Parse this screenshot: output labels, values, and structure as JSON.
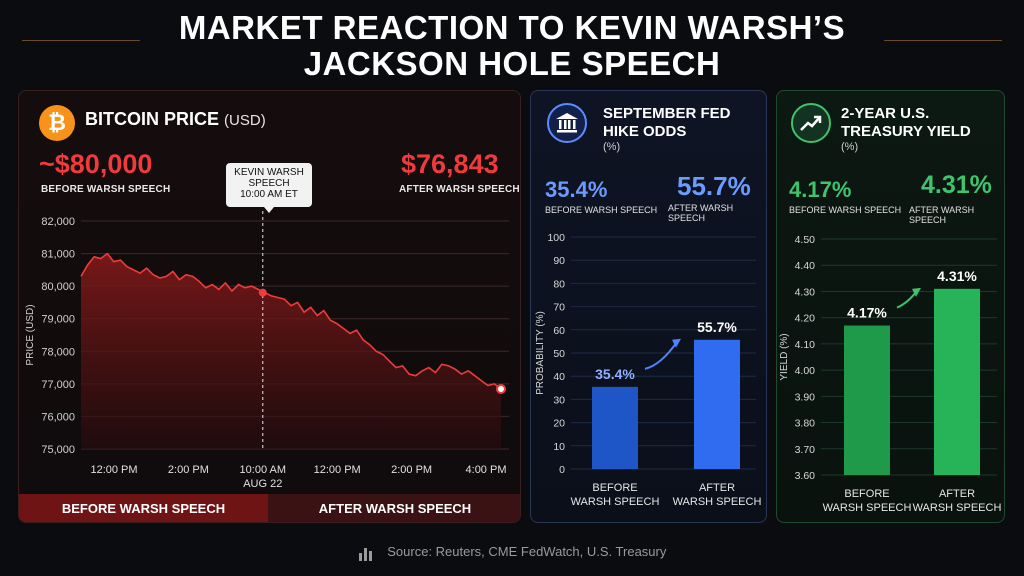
{
  "title_line1": "MARKET REACTION TO KEVIN WARSH’S",
  "title_line2": "JACKSON HOLE SPEECH",
  "source": "Source: Reuters, CME FedWatch, U.S. Treasury",
  "colors": {
    "red": "#ef3b3b",
    "blue": "#6b9bff",
    "green": "#3ec46d",
    "bitcoin": "#f7931a"
  },
  "bitcoin": {
    "icon": "bitcoin-icon",
    "title": "BITCOIN PRICE",
    "unit": "(USD)",
    "before_value": "~$80,000",
    "before_label": "BEFORE WARSH SPEECH",
    "after_value": "$76,843",
    "after_label": "AFTER WARSH SPEECH",
    "event_line1": "KEVIN WARSH",
    "event_line2": "SPEECH",
    "event_line3": "10:00 AM ET",
    "band_before": "BEFORE WARSH SPEECH",
    "band_after": "AFTER WARSH SPEECH"
  },
  "fed": {
    "icon": "bank-icon",
    "title_line1": "SEPTEMBER FED",
    "title_line2": "HIKE ODDS",
    "unit": "(%)",
    "before_value": "35.4%",
    "before_label": "BEFORE WARSH SPEECH",
    "after_value": "55.7%",
    "after_label": "AFTER WARSH SPEECH"
  },
  "yield": {
    "icon": "trend-up-icon",
    "title_line1": "2-YEAR U.S.",
    "title_line2": "TREASURY YIELD",
    "unit": "(%)",
    "before_value": "4.17%",
    "before_label": "BEFORE WARSH SPEECH",
    "after_value": "4.31%",
    "after_label": "AFTER WARSH SPEECH"
  },
  "chart_data": [
    {
      "type": "line",
      "ylabel": "PRICE (USD)",
      "ylim": [
        75000,
        82000
      ],
      "y_ticks": [
        "82,000",
        "81,000",
        "80,000",
        "79,000",
        "78,000",
        "77,000",
        "76,000",
        "75,000"
      ],
      "x_tick_labels": [
        {
          "label": "12:00 PM",
          "sub": ""
        },
        {
          "label": "2:00 PM",
          "sub": ""
        },
        {
          "label": "10:00 AM",
          "sub": "AUG 22"
        },
        {
          "label": "12:00 PM",
          "sub": ""
        },
        {
          "label": "2:00 PM",
          "sub": ""
        },
        {
          "label": "4:00 PM",
          "sub": ""
        }
      ],
      "event_index": 2,
      "series": [
        {
          "values": [
            80300,
            80650,
            80900,
            80850,
            81000,
            80750,
            80800,
            80600,
            80500,
            80400,
            80550,
            80350,
            80250,
            80300,
            80450,
            80200,
            80350,
            80300,
            80150,
            79950,
            80050,
            79900,
            80100,
            79850,
            80050,
            79950,
            80000,
            79900,
            79800,
            79700,
            79650,
            79600,
            79400,
            79500,
            79200,
            79350,
            79100,
            79250,
            78950,
            78850,
            78700,
            78550,
            78650,
            78350,
            78200,
            78000,
            77900,
            77700,
            77500,
            77550,
            77300,
            77250,
            77400,
            77500,
            77350,
            77600,
            77550,
            77450,
            77300,
            77400,
            77250,
            77100,
            76950,
            77000,
            76843
          ]
        }
      ],
      "grid": true
    },
    {
      "type": "bar",
      "categories": [
        "BEFORE\nWARSH SPEECH",
        "AFTER\nWARSH SPEECH"
      ],
      "values": [
        35.4,
        55.7
      ],
      "data_labels": [
        "35.4%",
        "55.7%"
      ],
      "ylabel": "PROBABILITY (%)",
      "ylim": [
        0,
        100
      ],
      "y_ticks": [
        0,
        10,
        20,
        30,
        40,
        50,
        60,
        70,
        80,
        90,
        100
      ]
    },
    {
      "type": "bar",
      "categories": [
        "BEFORE\nWARSH SPEECH",
        "AFTER\nWARSH SPEECH"
      ],
      "values": [
        4.17,
        4.31
      ],
      "data_labels": [
        "4.17%",
        "4.31%"
      ],
      "ylabel": "YIELD (%)",
      "ylim": [
        3.6,
        4.5
      ],
      "y_ticks": [
        "3.60",
        "3.70",
        "3.80",
        "3.90",
        "4.00",
        "4.10",
        "4.20",
        "4.30",
        "4.40",
        "4.50"
      ]
    }
  ]
}
